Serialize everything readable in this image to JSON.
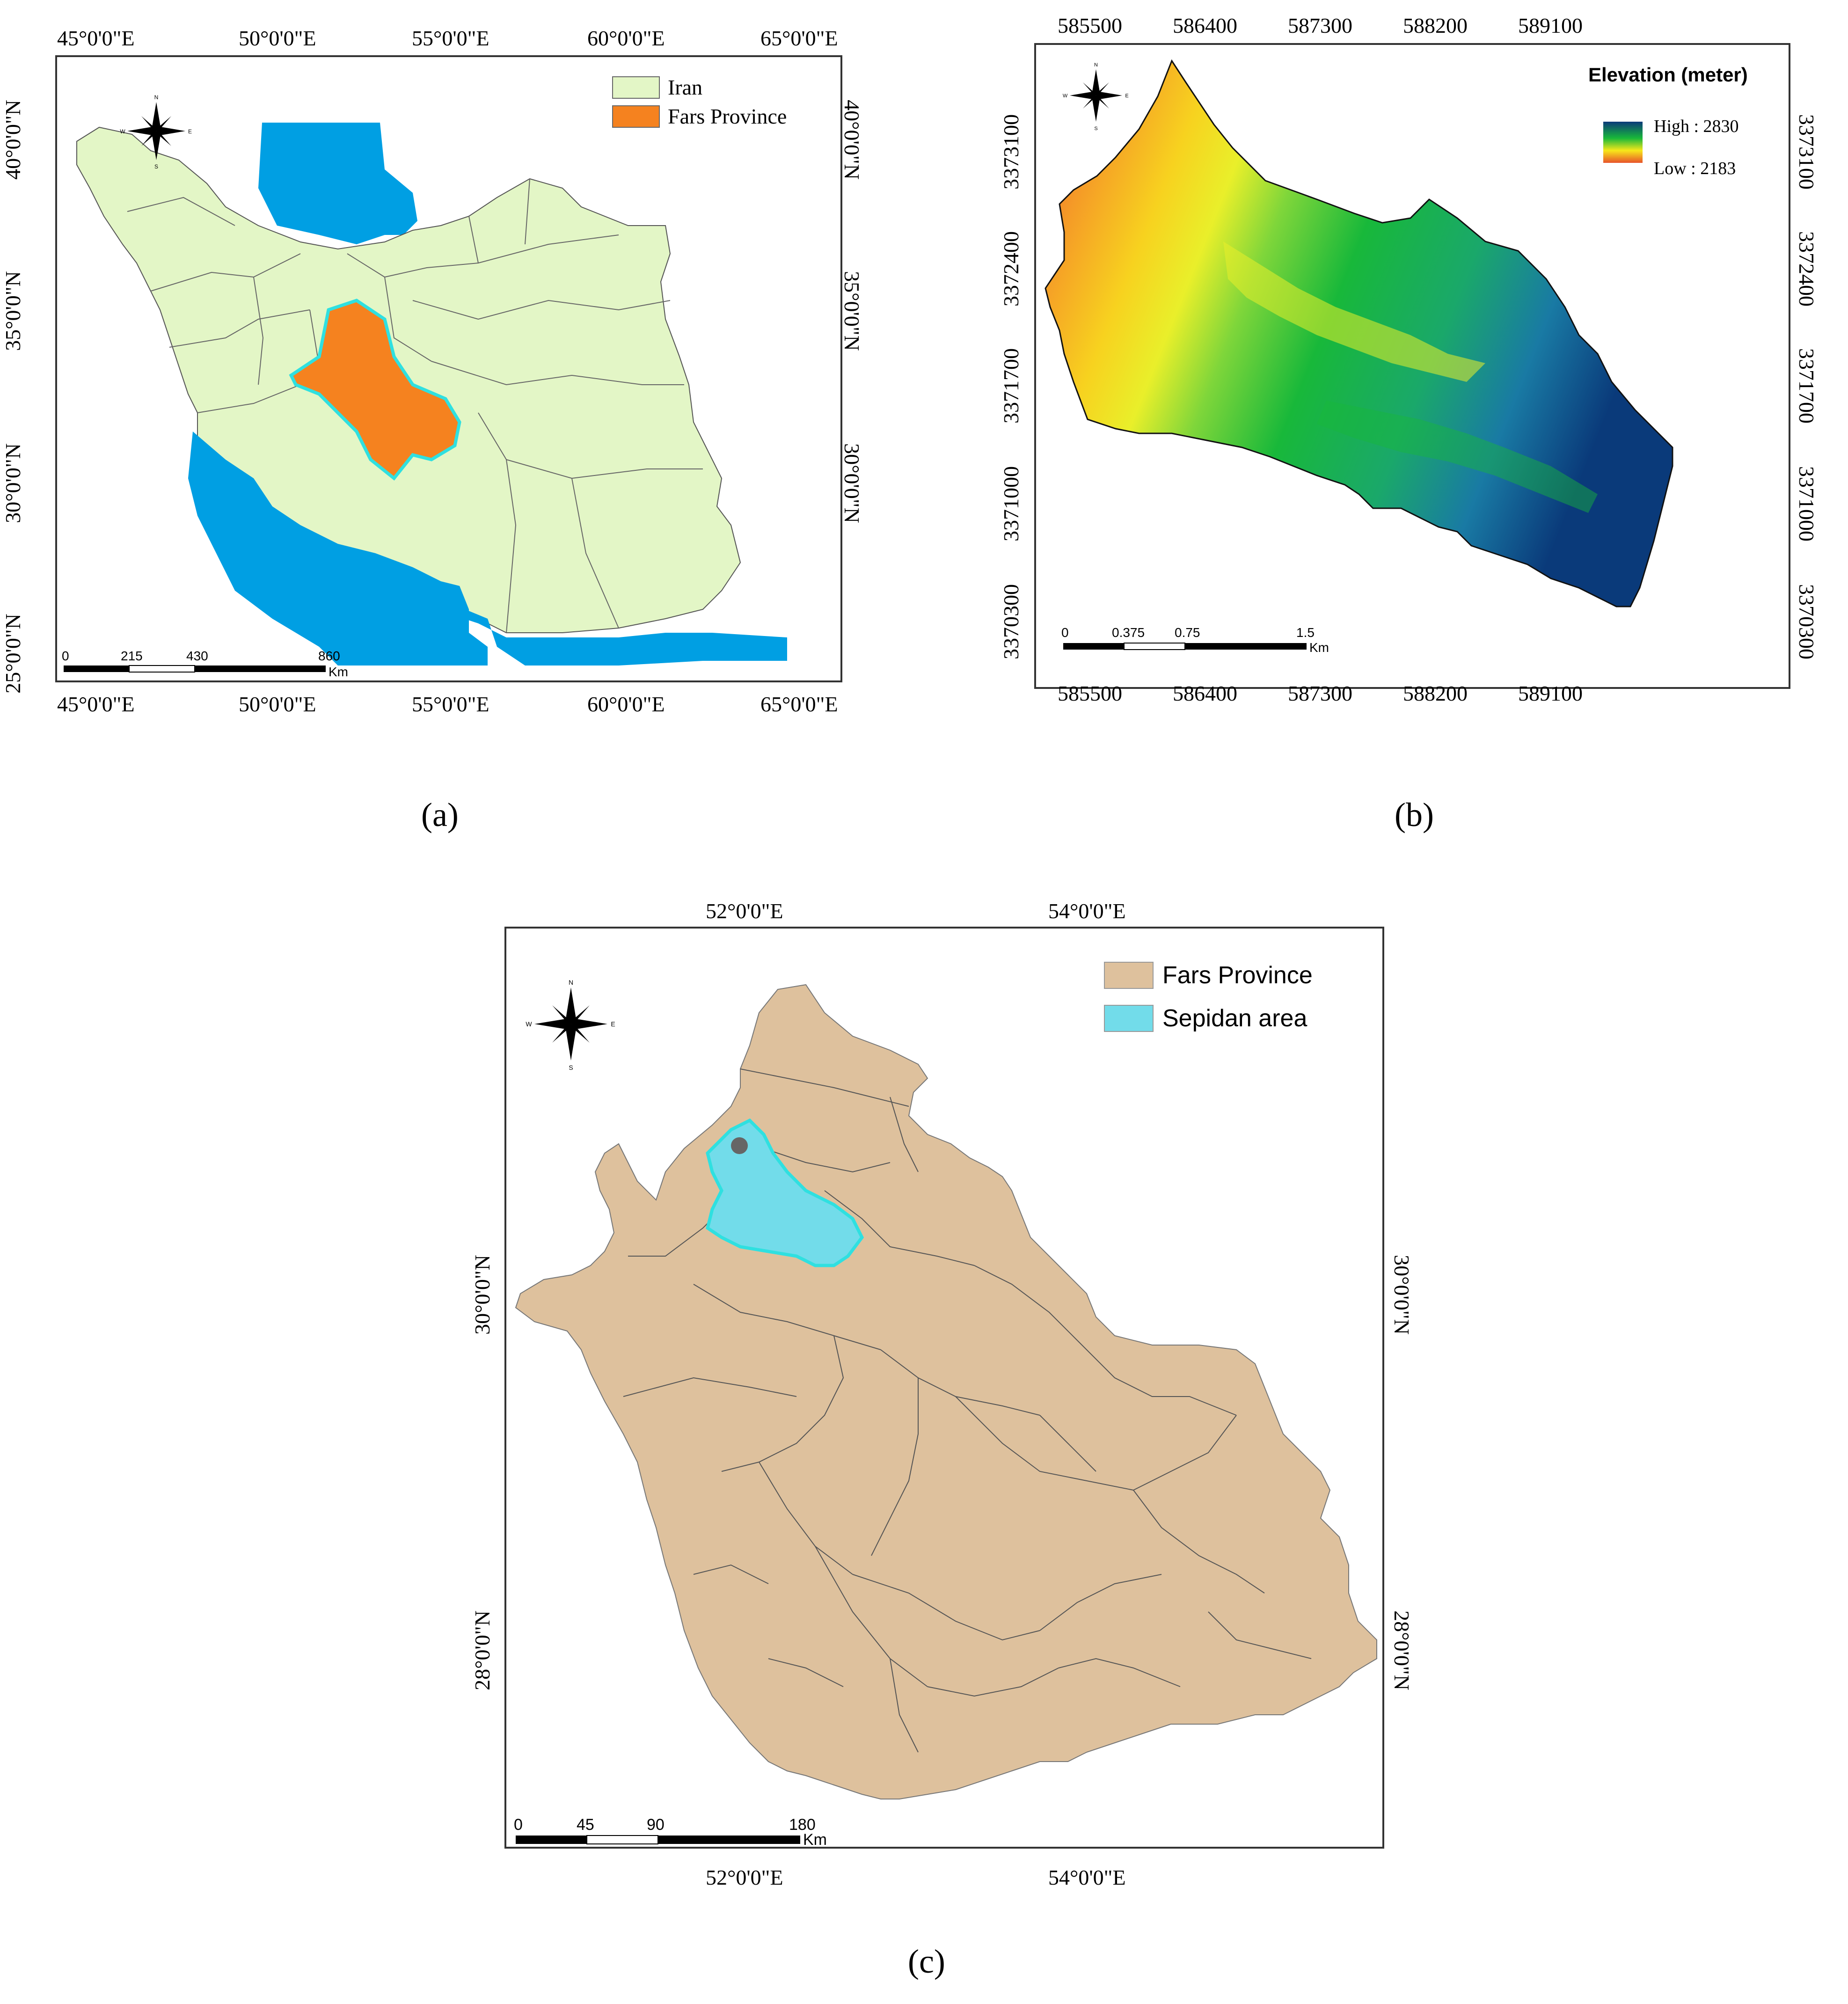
{
  "panel_a": {
    "caption": "(a)",
    "lon_ticks": [
      "45°0'0\"E",
      "50°0'0\"E",
      "55°0'0\"E",
      "60°0'0\"E",
      "65°0'0\"E"
    ],
    "lat_ticks": [
      "40°0'0\"N",
      "35°0'0\"N",
      "30°0'0\"N",
      "25°0'0\"N"
    ],
    "legend": [
      {
        "label": "Iran",
        "color": "#e3f6c6"
      },
      {
        "label": "Fars Province",
        "color": "#f5821f"
      }
    ],
    "scale": {
      "labels": [
        "0",
        "215",
        "430",
        "860"
      ],
      "unit": "Km"
    },
    "colors": {
      "water": "#009fe3",
      "iran": "#e3f6c6",
      "fars": "#f5821f",
      "fars_outline": "#2fe0e0"
    },
    "north_arrow": "compass-rose-icon"
  },
  "panel_b": {
    "caption": "(b)",
    "x_ticks": [
      "585500",
      "586400",
      "587300",
      "588200",
      "589100"
    ],
    "y_ticks": [
      "3373100",
      "3372400",
      "3371700",
      "3371000",
      "3370300"
    ],
    "legend_title": "Elevation (meter)",
    "legend_high": "High : 2830",
    "legend_low": "Low : 2183",
    "scale": {
      "labels": [
        "0",
        "0.375",
        "0.75",
        "1.5"
      ],
      "unit": "Km"
    },
    "colors": {
      "high": "#0a3a7a",
      "mid": "#18b83a",
      "yellow": "#f7e81a",
      "low": "#e8532a"
    },
    "north_arrow": "compass-rose-icon"
  },
  "panel_c": {
    "caption": "(c)",
    "lon_ticks": [
      "52°0'0\"E",
      "54°0'0\"E"
    ],
    "lat_ticks": [
      "30°0'0\"N",
      "28°0'0\"N"
    ],
    "legend": [
      {
        "label": "Fars Province",
        "color": "#dec19d"
      },
      {
        "label": "Sepidan area",
        "color": "#72dcea"
      }
    ],
    "scale": {
      "labels": [
        "0",
        "45",
        "90",
        "180"
      ],
      "unit": "Km"
    },
    "colors": {
      "fars": "#dec19d",
      "sepidan": "#72dcea",
      "sepidan_outline": "#2fe0e0",
      "point": "#666666"
    },
    "north_arrow": "compass-rose-icon"
  }
}
